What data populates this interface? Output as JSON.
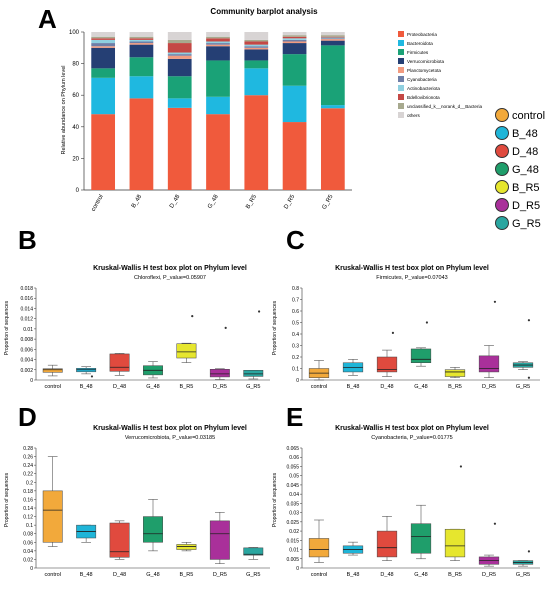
{
  "colors": {
    "control": "#f2a93b",
    "B_48": "#1fb5d8",
    "D_48": "#e04a3e",
    "G_48": "#1f9e6b",
    "B_R5": "#e6e62e",
    "D_R5": "#a9309a",
    "G_R5": "#2aa6a0"
  },
  "groups": [
    "control",
    "B_48",
    "D_48",
    "G_48",
    "B_R5",
    "D_R5",
    "G_R5"
  ],
  "chart_data": [
    {
      "panel": "A",
      "type": "bar",
      "stacked": true,
      "title": "Community barplot analysis",
      "ylabel": "Relative abundance on Phylum level",
      "xlabel": "",
      "ylim": [
        0,
        100
      ],
      "yticks": [
        0,
        20,
        40,
        60,
        80,
        100
      ],
      "categories": [
        "control",
        "B_48",
        "D_48",
        "G_48",
        "B_R5",
        "D_R5",
        "G_R5"
      ],
      "series": [
        {
          "name": "Proteobacteria",
          "color": "#f05a3c",
          "values": [
            48,
            58,
            52,
            48,
            60,
            43,
            52
          ]
        },
        {
          "name": "Bacteroidota",
          "color": "#1fb8e0",
          "values": [
            23,
            14,
            6,
            11,
            17,
            23,
            2
          ]
        },
        {
          "name": "Firmicutes",
          "color": "#1aa277",
          "values": [
            6,
            12,
            14,
            23,
            5,
            20,
            38
          ]
        },
        {
          "name": "Verrucomicrobiota",
          "color": "#253f74",
          "values": [
            13,
            8,
            11,
            9,
            7,
            7,
            3
          ]
        },
        {
          "name": "Planctomycetota",
          "color": "#f29b80",
          "values": [
            1,
            1,
            2,
            1,
            1,
            1,
            1
          ]
        },
        {
          "name": "Cyanobacteria",
          "color": "#6e7ea7",
          "values": [
            2,
            1,
            1,
            1,
            1,
            1,
            0.5
          ]
        },
        {
          "name": "Actinobacteriota",
          "color": "#8fd0e0",
          "values": [
            2,
            1,
            1,
            1,
            1,
            1,
            0.5
          ]
        },
        {
          "name": "Bdellovibrionota",
          "color": "#c44845",
          "values": [
            1,
            1,
            6,
            2,
            2,
            1,
            0.5
          ]
        },
        {
          "name": "unclassified_k__norank_d__Bacteria",
          "color": "#a7a98e",
          "values": [
            1,
            1,
            2,
            1,
            1,
            1,
            1
          ]
        },
        {
          "name": "others",
          "color": "#d8d4d4",
          "values": [
            3,
            3,
            5,
            3,
            5,
            2,
            2
          ]
        }
      ]
    },
    {
      "panel": "B",
      "type": "box",
      "title": "Kruskal-Wallis H test box plot on Phylum level",
      "subtitle": "Chloroflexi, P_value=0.05907",
      "ylabel": "Proportion of sequences",
      "ylim": [
        0,
        0.018
      ],
      "yticks": [
        0,
        0.002,
        0.004,
        0.006,
        0.008,
        0.01,
        0.012,
        0.014,
        0.016,
        0.018
      ],
      "categories": [
        "control",
        "B_48",
        "D_48",
        "G_48",
        "B_R5",
        "D_R5",
        "G_R5"
      ],
      "boxes": [
        {
          "q1": 0.0015,
          "median": 0.002,
          "q3": 0.0022,
          "low": 0.0008,
          "high": 0.0029,
          "outliers": []
        },
        {
          "q1": 0.0016,
          "median": 0.002,
          "q3": 0.0023,
          "low": 0.0012,
          "high": 0.0026,
          "outliers": [
            0.0007
          ]
        },
        {
          "q1": 0.0017,
          "median": 0.0025,
          "q3": 0.0051,
          "low": 0.0009,
          "high": 0.0052,
          "outliers": []
        },
        {
          "q1": 0.001,
          "median": 0.0019,
          "q3": 0.0028,
          "low": 0.0004,
          "high": 0.0036,
          "outliers": []
        },
        {
          "q1": 0.0043,
          "median": 0.0055,
          "q3": 0.0071,
          "low": 0.0034,
          "high": 0.0072,
          "outliers": [
            0.0125
          ]
        },
        {
          "q1": 0.0006,
          "median": 0.0012,
          "q3": 0.0021,
          "low": 0.0001,
          "high": 0.0022,
          "outliers": [
            0.0102
          ]
        },
        {
          "q1": 0.0007,
          "median": 0.0012,
          "q3": 0.0019,
          "low": 0.0002,
          "high": 0.0019,
          "outliers": [
            0.0134
          ]
        }
      ]
    },
    {
      "panel": "C",
      "type": "box",
      "title": "Kruskal-Wallis H test box plot on Phylum level",
      "subtitle": "Firmicutes, P_value=0.07043",
      "ylabel": "Proportion of sequences",
      "ylim": [
        0,
        0.8
      ],
      "yticks": [
        0,
        0.1,
        0.2,
        0.3,
        0.4,
        0.5,
        0.6,
        0.7,
        0.8
      ],
      "categories": [
        "control",
        "B_48",
        "D_48",
        "G_48",
        "B_R5",
        "D_R5",
        "G_R5"
      ],
      "boxes": [
        {
          "q1": 0.02,
          "median": 0.06,
          "q3": 0.1,
          "low": 0.0,
          "high": 0.17,
          "outliers": []
        },
        {
          "q1": 0.07,
          "median": 0.11,
          "q3": 0.15,
          "low": 0.04,
          "high": 0.18,
          "outliers": []
        },
        {
          "q1": 0.07,
          "median": 0.09,
          "q3": 0.2,
          "low": 0.03,
          "high": 0.26,
          "outliers": [
            0.41
          ]
        },
        {
          "q1": 0.15,
          "median": 0.18,
          "q3": 0.27,
          "low": 0.12,
          "high": 0.28,
          "outliers": [
            0.5
          ]
        },
        {
          "q1": 0.03,
          "median": 0.07,
          "q3": 0.09,
          "low": 0.02,
          "high": 0.11,
          "outliers": []
        },
        {
          "q1": 0.07,
          "median": 0.1,
          "q3": 0.21,
          "low": 0.02,
          "high": 0.3,
          "outliers": [
            0.68
          ]
        },
        {
          "q1": 0.11,
          "median": 0.13,
          "q3": 0.15,
          "low": 0.09,
          "high": 0.16,
          "outliers": [
            0.52,
            0.02
          ]
        }
      ]
    },
    {
      "panel": "D",
      "type": "box",
      "title": "Kruskal-Wallis H test box plot on Phylum level",
      "subtitle": "Verrucomicrobiota, P_value=0.03185",
      "ylabel": "Proportion of sequences",
      "ylim": [
        0,
        0.28
      ],
      "yticks": [
        0,
        0.02,
        0.04,
        0.06,
        0.08,
        0.1,
        0.12,
        0.14,
        0.16,
        0.18,
        0.2,
        0.22,
        0.24,
        0.26,
        0.28
      ],
      "categories": [
        "control",
        "B_48",
        "D_48",
        "G_48",
        "B_R5",
        "D_R5",
        "G_R5"
      ],
      "boxes": [
        {
          "q1": 0.06,
          "median": 0.135,
          "q3": 0.18,
          "low": 0.05,
          "high": 0.26,
          "outliers": []
        },
        {
          "q1": 0.07,
          "median": 0.085,
          "q3": 0.1,
          "low": 0.06,
          "high": 0.1,
          "outliers": []
        },
        {
          "q1": 0.025,
          "median": 0.038,
          "q3": 0.105,
          "low": 0.02,
          "high": 0.11,
          "outliers": []
        },
        {
          "q1": 0.06,
          "median": 0.08,
          "q3": 0.12,
          "low": 0.04,
          "high": 0.16,
          "outliers": []
        },
        {
          "q1": 0.043,
          "median": 0.05,
          "q3": 0.055,
          "low": 0.04,
          "high": 0.06,
          "outliers": []
        },
        {
          "q1": 0.02,
          "median": 0.08,
          "q3": 0.11,
          "low": 0.01,
          "high": 0.13,
          "outliers": []
        },
        {
          "q1": 0.03,
          "median": 0.032,
          "q3": 0.047,
          "low": 0.02,
          "high": 0.048,
          "outliers": []
        }
      ]
    },
    {
      "panel": "E",
      "type": "box",
      "title": "Kruskal-Wallis H test box plot on Phylum level",
      "subtitle": "Cyanobacteria, P_value=0.01775",
      "ylabel": "Proportion of sequences",
      "ylim": [
        0,
        0.065
      ],
      "yticks": [
        0,
        0.005,
        0.01,
        0.015,
        0.02,
        0.025,
        0.03,
        0.035,
        0.04,
        0.045,
        0.05,
        0.055,
        0.06,
        0.065
      ],
      "categories": [
        "control",
        "B_48",
        "D_48",
        "G_48",
        "B_R5",
        "D_R5",
        "G_R5"
      ],
      "boxes": [
        {
          "q1": 0.006,
          "median": 0.01,
          "q3": 0.016,
          "low": 0.003,
          "high": 0.026,
          "outliers": []
        },
        {
          "q1": 0.008,
          "median": 0.01,
          "q3": 0.012,
          "low": 0.007,
          "high": 0.014,
          "outliers": []
        },
        {
          "q1": 0.006,
          "median": 0.011,
          "q3": 0.02,
          "low": 0.004,
          "high": 0.028,
          "outliers": []
        },
        {
          "q1": 0.008,
          "median": 0.017,
          "q3": 0.024,
          "low": 0.005,
          "high": 0.034,
          "outliers": []
        },
        {
          "q1": 0.006,
          "median": 0.012,
          "q3": 0.021,
          "low": 0.004,
          "high": 0.021,
          "outliers": [
            0.055
          ]
        },
        {
          "q1": 0.002,
          "median": 0.004,
          "q3": 0.006,
          "low": 0.001,
          "high": 0.007,
          "outliers": [
            0.024
          ]
        },
        {
          "q1": 0.002,
          "median": 0.003,
          "q3": 0.004,
          "low": 0.001,
          "high": 0.004,
          "outliers": [
            0.009
          ]
        }
      ]
    }
  ]
}
